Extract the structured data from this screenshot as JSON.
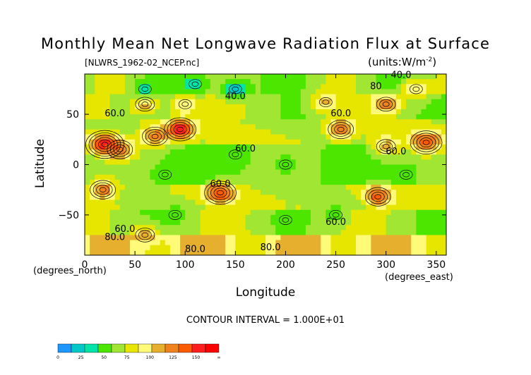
{
  "chart_data": {
    "type": "heatmap",
    "title": "Monthly Mean Net Longwave Radiation Flux at Surface",
    "subtitle_file": "[NLWRS_1962-02_NCEP.nc]",
    "units_label": "(units:W/m",
    "units_sup": "-2",
    "units_close": ")",
    "xlabel": "Longitude",
    "ylabel": "Latitude",
    "x_unit_label": "(degrees_east)",
    "y_unit_label": "(degrees_north)",
    "contour_interval_label": "CONTOUR INTERVAL = 1.000E+01",
    "xlim": [
      0,
      360
    ],
    "ylim": [
      -90,
      90
    ],
    "x_ticks": [
      0,
      50,
      100,
      150,
      200,
      250,
      300,
      350
    ],
    "x_tick_labels": [
      "0",
      "50",
      "100",
      "150",
      "200",
      "250",
      "300",
      "350"
    ],
    "y_ticks": [
      50,
      0,
      -50
    ],
    "y_tick_labels": [
      "50",
      "0",
      "−50"
    ],
    "contour_labels": [
      {
        "text": "40.0",
        "lon": 150,
        "lat": 65
      },
      {
        "text": "60.0",
        "lon": 30,
        "lat": 48
      },
      {
        "text": "60.0",
        "lon": 255,
        "lat": 48
      },
      {
        "text": "60.0",
        "lon": 160,
        "lat": 13
      },
      {
        "text": "60.0",
        "lon": 310,
        "lat": 10
      },
      {
        "text": "60.0",
        "lon": 135,
        "lat": -22
      },
      {
        "text": "60.0",
        "lon": 250,
        "lat": -60
      },
      {
        "text": "60.0",
        "lon": 40,
        "lat": -67
      },
      {
        "text": "80.0",
        "lon": 30,
        "lat": -75
      },
      {
        "text": "80.0",
        "lon": 110,
        "lat": -87
      },
      {
        "text": "80.0",
        "lon": 185,
        "lat": -85
      },
      {
        "text": "40.0",
        "lon": 315,
        "lat": 86
      },
      {
        "text": "80",
        "lon": 290,
        "lat": 75
      }
    ],
    "anomalies": [
      {
        "lon": 20,
        "lat": 20,
        "value": 140
      },
      {
        "lon": 35,
        "lat": 15,
        "value": 115
      },
      {
        "lon": 70,
        "lat": 28,
        "value": 110
      },
      {
        "lon": 95,
        "lat": 35,
        "value": 135
      },
      {
        "lon": 60,
        "lat": 60,
        "value": 95
      },
      {
        "lon": 100,
        "lat": 60,
        "value": 90
      },
      {
        "lon": 255,
        "lat": 35,
        "value": 110
      },
      {
        "lon": 240,
        "lat": 62,
        "value": 90
      },
      {
        "lon": 340,
        "lat": 22,
        "value": 125
      },
      {
        "lon": 300,
        "lat": 18,
        "value": 95
      },
      {
        "lon": 18,
        "lat": -25,
        "value": 110
      },
      {
        "lon": 135,
        "lat": -28,
        "value": 125
      },
      {
        "lon": 292,
        "lat": -32,
        "value": 120
      },
      {
        "lon": 300,
        "lat": 60,
        "value": 105
      },
      {
        "lon": 330,
        "lat": 75,
        "value": 90
      },
      {
        "lon": 60,
        "lat": -70,
        "value": 95
      },
      {
        "lon": 150,
        "lat": 75,
        "value": 20
      },
      {
        "lon": 110,
        "lat": 80,
        "value": 30
      },
      {
        "lon": 60,
        "lat": 75,
        "value": 35
      },
      {
        "lon": 150,
        "lat": 10,
        "value": 45
      },
      {
        "lon": 200,
        "lat": 0,
        "value": 45
      },
      {
        "lon": 80,
        "lat": -10,
        "value": 45
      },
      {
        "lon": 320,
        "lat": -10,
        "value": 45
      },
      {
        "lon": 90,
        "lat": -50,
        "value": 45
      },
      {
        "lon": 250,
        "lat": -50,
        "value": 45
      },
      {
        "lon": 200,
        "lat": -55,
        "value": 45
      }
    ],
    "colorbar": {
      "colors": [
        "#1e96ff",
        "#00c8c8",
        "#00e4a8",
        "#4ce600",
        "#a0e632",
        "#e6e600",
        "#fffa78",
        "#e6af2d",
        "#f0821e",
        "#fa5a00",
        "#ff1e1e",
        "#ff0000"
      ],
      "tick_labels": [
        "0",
        "25",
        "50",
        "75",
        "100",
        "125",
        "150",
        "∞"
      ]
    }
  }
}
